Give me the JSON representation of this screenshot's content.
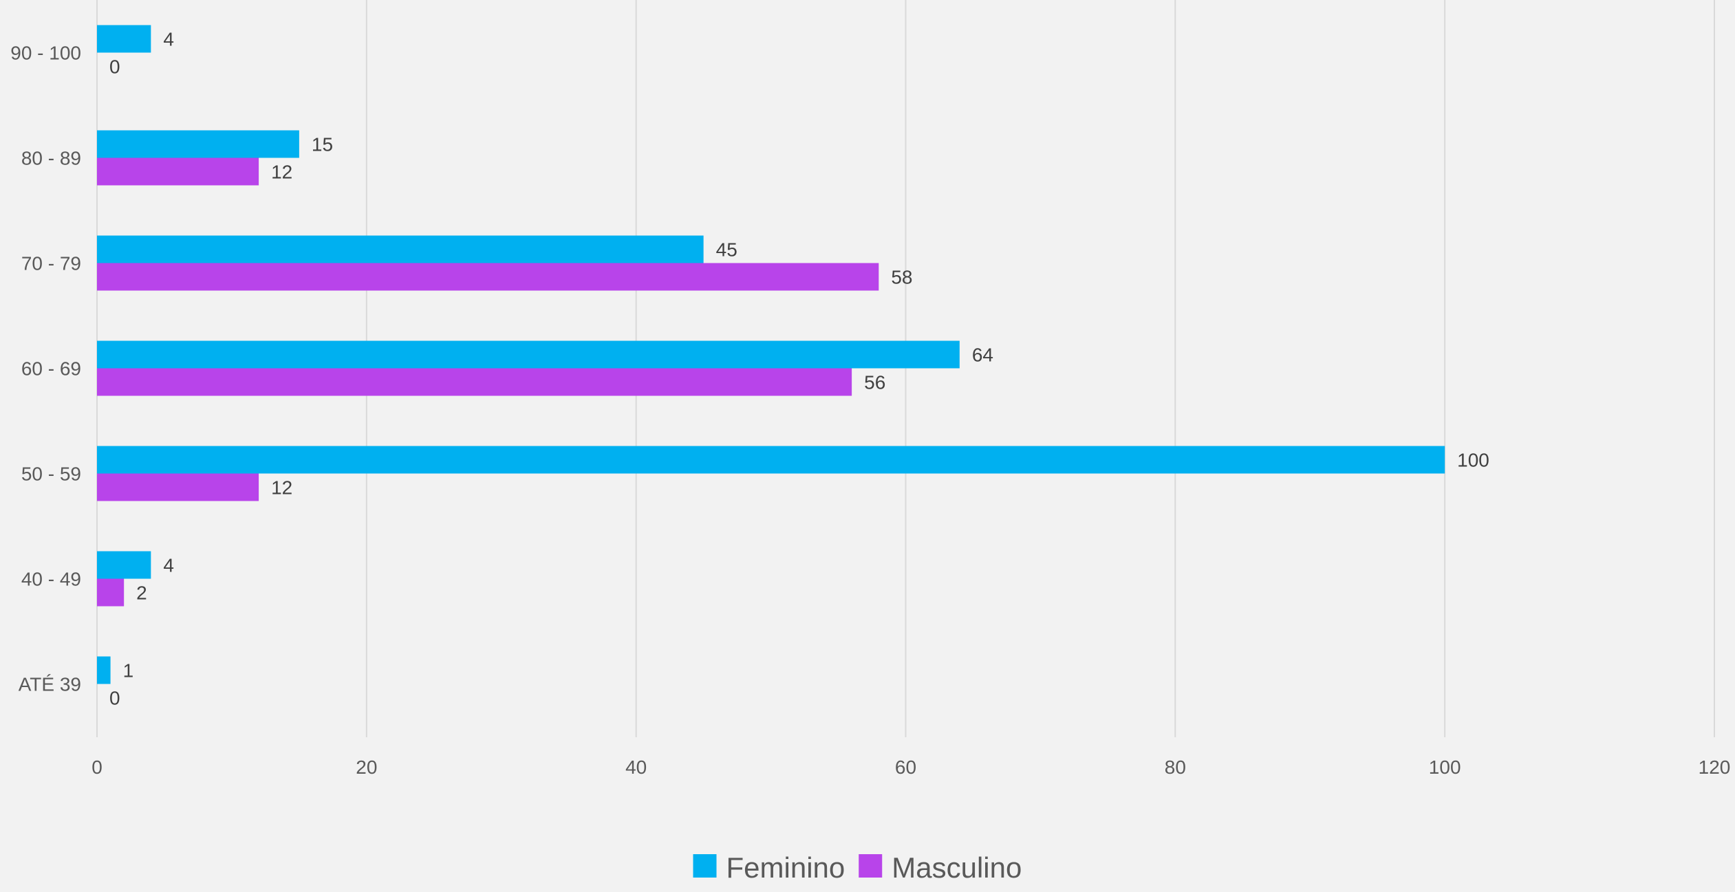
{
  "chart_data": {
    "type": "bar",
    "orientation": "horizontal",
    "title": "",
    "xlabel": "",
    "ylabel": "",
    "categories": [
      "ATÉ 39",
      "40 - 49",
      "50 - 59",
      "60 - 69",
      "70 - 79",
      "80 - 89",
      "90 - 100"
    ],
    "series": [
      {
        "name": "Feminino",
        "color": "#00b0f0",
        "values": [
          1,
          4,
          100,
          64,
          45,
          15,
          4
        ]
      },
      {
        "name": "Masculino",
        "color": "#b844ea",
        "values": [
          0,
          2,
          12,
          56,
          58,
          12,
          0
        ]
      }
    ],
    "xlim": [
      0,
      120
    ],
    "xticks": [
      0,
      20,
      40,
      60,
      80,
      100,
      120
    ],
    "grid": "vertical",
    "legend_position": "bottom",
    "data_labels": true
  }
}
